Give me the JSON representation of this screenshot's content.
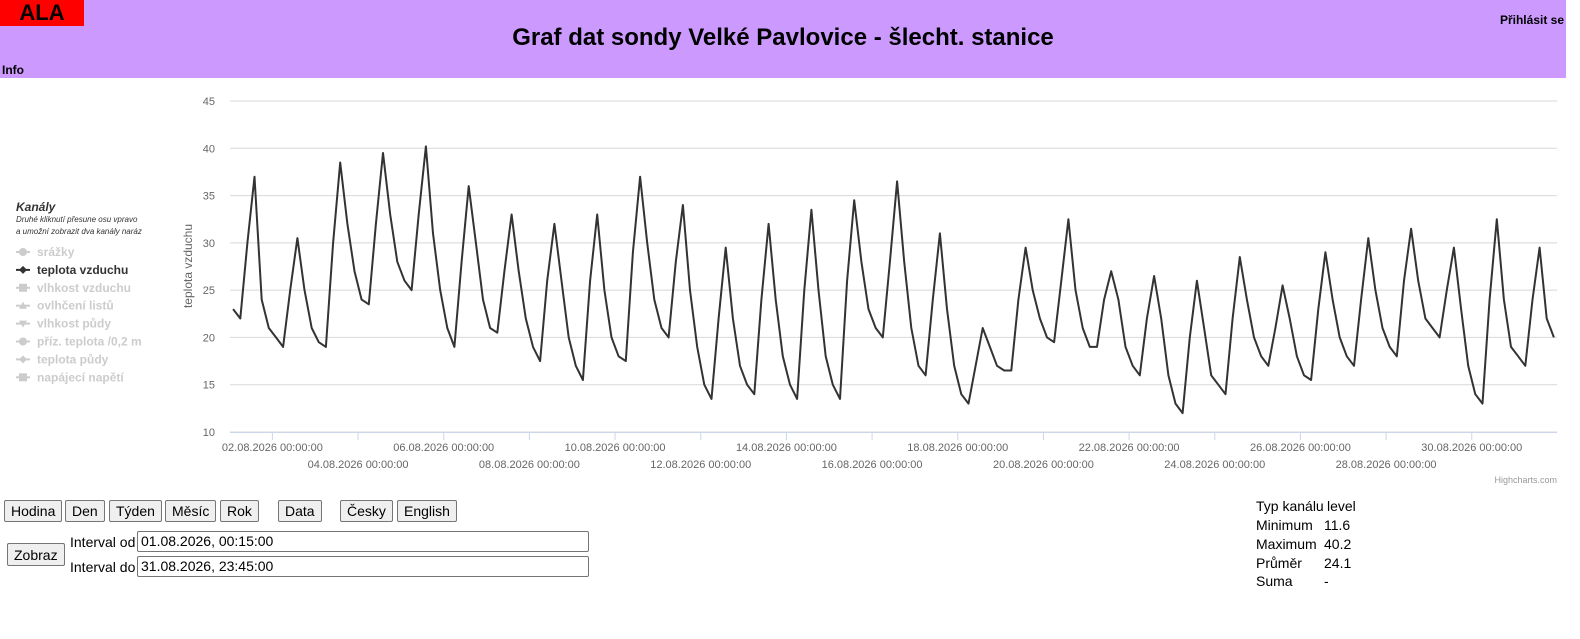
{
  "header": {
    "logo": "ALA",
    "title": "Graf dat sondy Velké Pavlovice - šlecht. stanice",
    "login": "Přihlásit se",
    "info": "Info"
  },
  "legend": {
    "title": "Kanály",
    "note": [
      "Druhé kliknutí přesune osu vpravo",
      "a umožní zobrazit dva kanály naráz"
    ],
    "channels_before": [
      "srážky"
    ],
    "channels_after": [
      "vlhkost vzduchu",
      "ovlhčení listů",
      "vlhkost půdy",
      "příz. teplota /0,2 m",
      "teplota půdy",
      "napájecí napětí"
    ]
  },
  "chart_data": {
    "type": "line",
    "y_axis_title": "teplota vzduchu",
    "credits": "Highcharts.com",
    "x": [
      "01.08.2026 02:00:00",
      "01.08.2026 06:00:00",
      "01.08.2026 10:00:00",
      "01.08.2026 14:00:00",
      "01.08.2026 18:00:00",
      "01.08.2026 22:00:00",
      "02.08.2026 02:00:00",
      "02.08.2026 06:00:00",
      "02.08.2026 10:00:00",
      "02.08.2026 14:00:00",
      "02.08.2026 18:00:00",
      "02.08.2026 22:00:00",
      "03.08.2026 02:00:00",
      "03.08.2026 06:00:00",
      "03.08.2026 10:00:00",
      "03.08.2026 14:00:00",
      "03.08.2026 18:00:00",
      "03.08.2026 22:00:00",
      "04.08.2026 02:00:00",
      "04.08.2026 06:00:00",
      "04.08.2026 10:00:00",
      "04.08.2026 14:00:00",
      "04.08.2026 18:00:00",
      "04.08.2026 22:00:00",
      "05.08.2026 02:00:00",
      "05.08.2026 06:00:00",
      "05.08.2026 10:00:00",
      "05.08.2026 14:00:00",
      "05.08.2026 18:00:00",
      "05.08.2026 22:00:00",
      "06.08.2026 02:00:00",
      "06.08.2026 06:00:00",
      "06.08.2026 10:00:00",
      "06.08.2026 14:00:00",
      "06.08.2026 18:00:00",
      "06.08.2026 22:00:00",
      "07.08.2026 02:00:00",
      "07.08.2026 06:00:00",
      "07.08.2026 10:00:00",
      "07.08.2026 14:00:00",
      "07.08.2026 18:00:00",
      "07.08.2026 22:00:00",
      "08.08.2026 02:00:00",
      "08.08.2026 06:00:00",
      "08.08.2026 10:00:00",
      "08.08.2026 14:00:00",
      "08.08.2026 18:00:00",
      "08.08.2026 22:00:00",
      "09.08.2026 02:00:00",
      "09.08.2026 06:00:00",
      "09.08.2026 10:00:00",
      "09.08.2026 14:00:00",
      "09.08.2026 18:00:00",
      "09.08.2026 22:00:00",
      "10.08.2026 02:00:00",
      "10.08.2026 06:00:00",
      "10.08.2026 10:00:00",
      "10.08.2026 14:00:00",
      "10.08.2026 18:00:00",
      "10.08.2026 22:00:00",
      "11.08.2026 02:00:00",
      "11.08.2026 06:00:00",
      "11.08.2026 10:00:00",
      "11.08.2026 14:00:00",
      "11.08.2026 18:00:00",
      "11.08.2026 22:00:00",
      "12.08.2026 02:00:00",
      "12.08.2026 06:00:00",
      "12.08.2026 10:00:00",
      "12.08.2026 14:00:00",
      "12.08.2026 18:00:00",
      "12.08.2026 22:00:00",
      "13.08.2026 02:00:00",
      "13.08.2026 06:00:00",
      "13.08.2026 10:00:00",
      "13.08.2026 14:00:00",
      "13.08.2026 18:00:00",
      "13.08.2026 22:00:00",
      "14.08.2026 02:00:00",
      "14.08.2026 06:00:00",
      "14.08.2026 10:00:00",
      "14.08.2026 14:00:00",
      "14.08.2026 18:00:00",
      "14.08.2026 22:00:00",
      "15.08.2026 02:00:00",
      "15.08.2026 06:00:00",
      "15.08.2026 10:00:00",
      "15.08.2026 14:00:00",
      "15.08.2026 18:00:00",
      "15.08.2026 22:00:00",
      "16.08.2026 02:00:00",
      "16.08.2026 06:00:00",
      "16.08.2026 10:00:00",
      "16.08.2026 14:00:00",
      "16.08.2026 18:00:00",
      "16.08.2026 22:00:00",
      "17.08.2026 02:00:00",
      "17.08.2026 06:00:00",
      "17.08.2026 10:00:00",
      "17.08.2026 14:00:00",
      "17.08.2026 18:00:00",
      "17.08.2026 22:00:00",
      "18.08.2026 02:00:00",
      "18.08.2026 06:00:00",
      "18.08.2026 10:00:00",
      "18.08.2026 14:00:00",
      "18.08.2026 18:00:00",
      "18.08.2026 22:00:00",
      "19.08.2026 02:00:00",
      "19.08.2026 06:00:00",
      "19.08.2026 10:00:00",
      "19.08.2026 14:00:00",
      "19.08.2026 18:00:00",
      "19.08.2026 22:00:00",
      "20.08.2026 02:00:00",
      "20.08.2026 06:00:00",
      "20.08.2026 10:00:00",
      "20.08.2026 14:00:00",
      "20.08.2026 18:00:00",
      "20.08.2026 22:00:00",
      "21.08.2026 02:00:00",
      "21.08.2026 06:00:00",
      "21.08.2026 10:00:00",
      "21.08.2026 14:00:00",
      "21.08.2026 18:00:00",
      "21.08.2026 22:00:00",
      "22.08.2026 02:00:00",
      "22.08.2026 06:00:00",
      "22.08.2026 10:00:00",
      "22.08.2026 14:00:00",
      "22.08.2026 18:00:00",
      "22.08.2026 22:00:00",
      "23.08.2026 02:00:00",
      "23.08.2026 06:00:00",
      "23.08.2026 10:00:00",
      "23.08.2026 14:00:00",
      "23.08.2026 18:00:00",
      "23.08.2026 22:00:00",
      "24.08.2026 02:00:00",
      "24.08.2026 06:00:00",
      "24.08.2026 10:00:00",
      "24.08.2026 14:00:00",
      "24.08.2026 18:00:00",
      "24.08.2026 22:00:00",
      "25.08.2026 02:00:00",
      "25.08.2026 06:00:00",
      "25.08.2026 10:00:00",
      "25.08.2026 14:00:00",
      "25.08.2026 18:00:00",
      "25.08.2026 22:00:00",
      "26.08.2026 02:00:00",
      "26.08.2026 06:00:00",
      "26.08.2026 10:00:00",
      "26.08.2026 14:00:00",
      "26.08.2026 18:00:00",
      "26.08.2026 22:00:00",
      "27.08.2026 02:00:00",
      "27.08.2026 06:00:00",
      "27.08.2026 10:00:00",
      "27.08.2026 14:00:00",
      "27.08.2026 18:00:00",
      "27.08.2026 22:00:00",
      "28.08.2026 02:00:00",
      "28.08.2026 06:00:00",
      "28.08.2026 10:00:00",
      "28.08.2026 14:00:00",
      "28.08.2026 18:00:00",
      "28.08.2026 22:00:00",
      "29.08.2026 02:00:00",
      "29.08.2026 06:00:00",
      "29.08.2026 10:00:00",
      "29.08.2026 14:00:00",
      "29.08.2026 18:00:00",
      "29.08.2026 22:00:00",
      "30.08.2026 02:00:00",
      "30.08.2026 06:00:00",
      "30.08.2026 10:00:00",
      "30.08.2026 14:00:00",
      "30.08.2026 18:00:00",
      "30.08.2026 22:00:00",
      "31.08.2026 02:00:00",
      "31.08.2026 06:00:00",
      "31.08.2026 10:00:00",
      "31.08.2026 14:00:00",
      "31.08.2026 18:00:00",
      "31.08.2026 22:00:00"
    ],
    "series": [
      {
        "name": "teplota vzduchu",
        "color": "#333333",
        "values": [
          23,
          22,
          30,
          37,
          24,
          21,
          20,
          19,
          25,
          30.5,
          25,
          21,
          19.5,
          19,
          30,
          38.5,
          32,
          27,
          24,
          23.5,
          32,
          39.5,
          33,
          28,
          26,
          25,
          33,
          40.2,
          31,
          25,
          21,
          19,
          28,
          36,
          30,
          24,
          21,
          20.5,
          27,
          33,
          27,
          22,
          19,
          17.5,
          26,
          32,
          26,
          20,
          17,
          15.5,
          26,
          33,
          25,
          20,
          18,
          17.5,
          29,
          37,
          30,
          24,
          21,
          20,
          28,
          34,
          25,
          19,
          15,
          13.5,
          22,
          29.5,
          22,
          17,
          15,
          14,
          24,
          32,
          24,
          18,
          15,
          13.5,
          25,
          33.5,
          25,
          18,
          15,
          13.5,
          26,
          34.5,
          28,
          23,
          21,
          20,
          28,
          36.5,
          28,
          21,
          17,
          16,
          24,
          31,
          23,
          17,
          14,
          13,
          17,
          21,
          19,
          17,
          16.5,
          16.5,
          24,
          29.5,
          25,
          22,
          20,
          19.5,
          26,
          32.5,
          25,
          21,
          19,
          19,
          24,
          27,
          24,
          19,
          17,
          16,
          22,
          26.5,
          22,
          16,
          13,
          12,
          20,
          26,
          21,
          16,
          15,
          14,
          22,
          28.5,
          24,
          20,
          18,
          17,
          21,
          25.5,
          22,
          18,
          16,
          15.5,
          23,
          29,
          24,
          20,
          18,
          17,
          24,
          30.5,
          25,
          21,
          19,
          18,
          26,
          31.5,
          26,
          22,
          21,
          20,
          25,
          29.5,
          23,
          17,
          14,
          13,
          24,
          32.5,
          24,
          19,
          18,
          17,
          24,
          29.5,
          22,
          20
        ]
      }
    ],
    "xlim": [
      "01.08.2026 00:15:00",
      "31.08.2026 23:45:00"
    ],
    "xticks": [
      "02.08.2026 00:00:00",
      "04.08.2026 00:00:00",
      "06.08.2026 00:00:00",
      "08.08.2026 00:00:00",
      "10.08.2026 00:00:00",
      "12.08.2026 00:00:00",
      "14.08.2026 00:00:00",
      "16.08.2026 00:00:00",
      "18.08.2026 00:00:00",
      "20.08.2026 00:00:00",
      "22.08.2026 00:00:00",
      "24.08.2026 00:00:00",
      "26.08.2026 00:00:00",
      "28.08.2026 00:00:00",
      "30.08.2026 00:00:00"
    ],
    "ylim": [
      10,
      45
    ],
    "yticks": [
      10,
      15,
      20,
      25,
      30,
      35,
      40,
      45
    ],
    "grid": true
  },
  "controls": {
    "buttons": [
      "Hodina",
      "Den",
      "Týden",
      "Měsíc",
      "Rok",
      "Data",
      "Česky",
      "English"
    ],
    "submit": "Zobraz",
    "from_label": "Interval od",
    "from_value": "01.08.2026, 00:15:00",
    "to_label": "Interval do",
    "to_value": "31.08.2026, 23:45:00"
  },
  "stats": {
    "type_label": "Typ kanálu",
    "type_value": "level",
    "rows": [
      [
        "Minimum",
        "11.6"
      ],
      [
        "Maximum",
        "40.2"
      ],
      [
        "Průměr",
        "24.1"
      ],
      [
        "Suma",
        "-"
      ]
    ]
  }
}
